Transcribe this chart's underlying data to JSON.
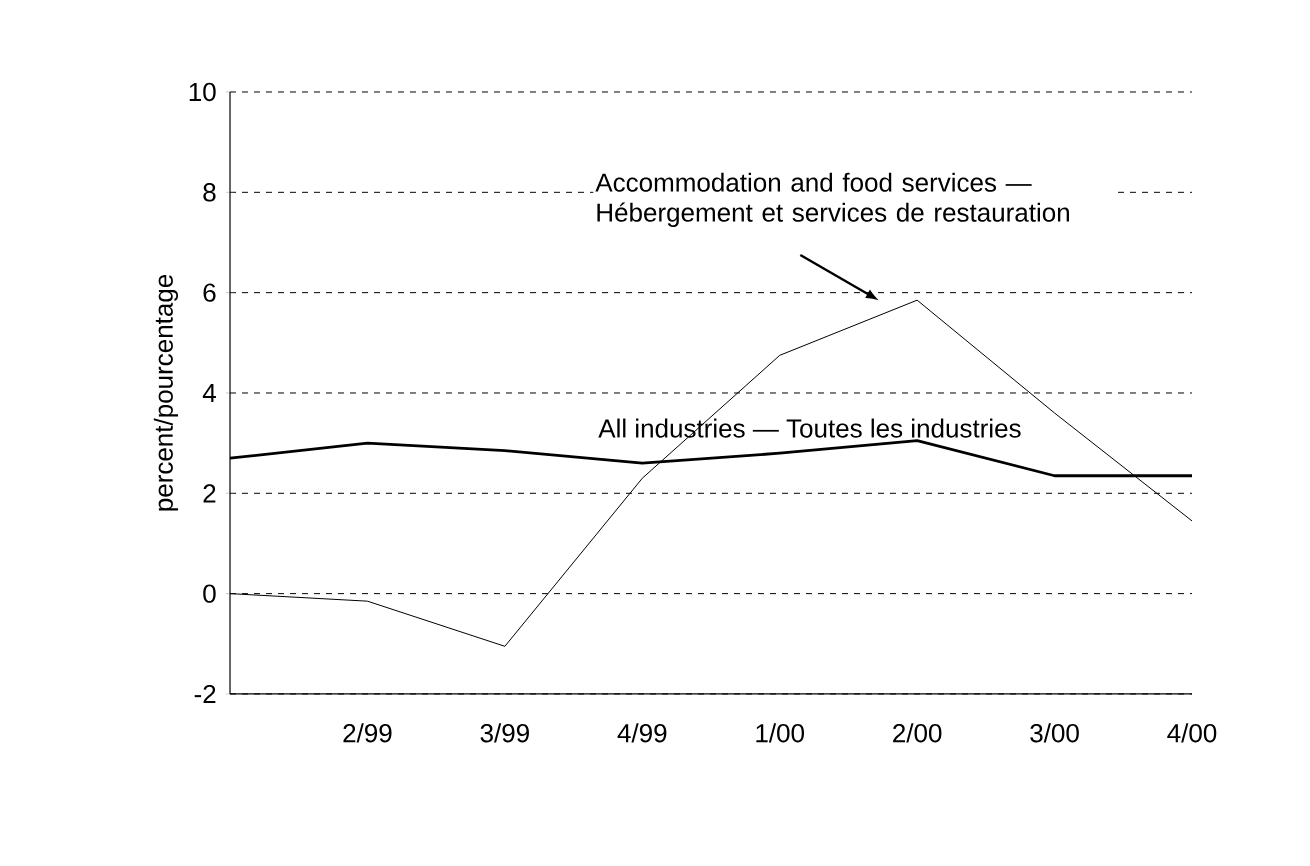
{
  "chart_data": {
    "type": "line",
    "ylabel": "percent/pourcentage",
    "categories": [
      null,
      "2/99",
      "3/99",
      "4/99",
      "1/00",
      "2/00",
      "3/00",
      "4/00"
    ],
    "series": [
      {
        "name": "All industries — Toutes les industries",
        "color": "#000000",
        "values": [
          2.7,
          3.0,
          2.85,
          2.6,
          2.8,
          3.05,
          2.35,
          2.35
        ]
      },
      {
        "name": "Accommodation and food services — Hébergement et services de restauration",
        "color": "#000000",
        "values": [
          0,
          -0.15,
          -1.05,
          2.3,
          4.75,
          5.85,
          3.6,
          1.45
        ]
      }
    ],
    "ylim": [
      -2,
      10
    ],
    "yticks": [
      -2,
      0,
      2,
      4,
      6,
      8,
      10
    ],
    "grid": "y",
    "legend": false,
    "marker": "none",
    "line_style": "solid"
  }
}
